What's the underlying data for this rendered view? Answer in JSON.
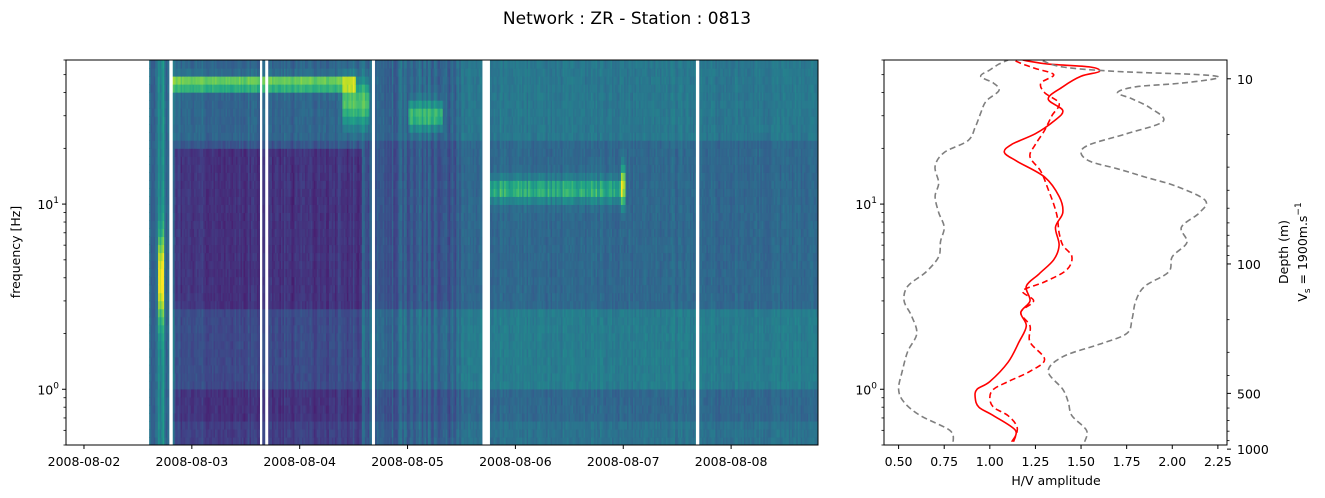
{
  "figure": {
    "title": "Network : ZR - Station : 0813"
  },
  "chart_data": [
    {
      "type": "heatmap",
      "panel": "spectrogram",
      "ylabel": "frequency [Hz]",
      "xlabel": "",
      "yscale": "log",
      "xlim": [
        "2008-08-01 20:00",
        "2008-08-08 19:20"
      ],
      "ylim": [
        0.5,
        60
      ],
      "x_ticks": [
        "2008-08-02",
        "2008-08-03",
        "2008-08-04",
        "2008-08-05",
        "2008-08-06",
        "2008-08-07",
        "2008-08-08"
      ],
      "y_ticks": [
        {
          "label": "10",
          "sup": "0",
          "value": 1
        },
        {
          "label": "10",
          "sup": "1",
          "value": 10
        }
      ],
      "colormap": "viridis",
      "data_start": "2008-08-02 14:30",
      "data_gaps": [
        {
          "start": "2008-08-02 19:00",
          "end": "2008-08-02 19:45"
        },
        {
          "start": "2008-08-03 15:10",
          "end": "2008-08-03 15:40"
        },
        {
          "start": "2008-08-03 16:20",
          "end": "2008-08-03 17:00"
        },
        {
          "start": "2008-08-04 16:05",
          "end": "2008-08-04 16:45"
        },
        {
          "start": "2008-08-05 16:40",
          "end": "2008-08-05 18:20"
        },
        {
          "start": "2008-08-07 16:10",
          "end": "2008-08-07 16:55"
        }
      ],
      "features": [
        {
          "name": "persistent peak near 45 Hz",
          "freq": 45,
          "from": "2008-08-02 19:30",
          "to": "2008-08-04 12:30"
        },
        {
          "name": "peak band 10-14 Hz",
          "freq": 12,
          "from": "2008-08-05 18:00",
          "to": "2008-08-07 00:00"
        },
        {
          "name": "strong broadband at start",
          "freq": 4,
          "from": "2008-08-02 14:30",
          "to": "2008-08-02 19:00"
        }
      ]
    },
    {
      "type": "line",
      "panel": "hv-curve",
      "xlabel": "H/V amplitude",
      "ylabel": "",
      "xlim": [
        0.42,
        2.3
      ],
      "ylim": [
        0.5,
        60
      ],
      "yscale": "log",
      "x_ticks": [
        "0.50",
        "0.75",
        "1.00",
        "1.25",
        "1.50",
        "1.75",
        "2.00",
        "2.25"
      ],
      "y_ticks": [
        {
          "label": "10",
          "sup": "0",
          "value": 1
        },
        {
          "label": "10",
          "sup": "1",
          "value": 10
        }
      ],
      "series": [
        {
          "style": "solid",
          "color": "#ff0000",
          "points": [
            [
              1.12,
              0.52
            ],
            [
              1.14,
              0.6
            ],
            [
              1.02,
              0.72
            ],
            [
              0.94,
              0.8
            ],
            [
              0.92,
              0.9
            ],
            [
              0.93,
              1.0
            ],
            [
              1.0,
              1.1
            ],
            [
              1.1,
              1.4
            ],
            [
              1.16,
              1.8
            ],
            [
              1.2,
              2.2
            ],
            [
              1.17,
              2.6
            ],
            [
              1.22,
              3.0
            ],
            [
              1.2,
              3.6
            ],
            [
              1.27,
              4.2
            ],
            [
              1.35,
              5.0
            ],
            [
              1.38,
              6.0
            ],
            [
              1.36,
              7.5
            ],
            [
              1.4,
              9.0
            ],
            [
              1.38,
              11.0
            ],
            [
              1.3,
              14.0
            ],
            [
              1.15,
              17.0
            ],
            [
              1.08,
              19.0
            ],
            [
              1.12,
              21.0
            ],
            [
              1.25,
              24.0
            ],
            [
              1.35,
              28.0
            ],
            [
              1.4,
              32.0
            ],
            [
              1.32,
              37.0
            ],
            [
              1.4,
              43.0
            ],
            [
              1.5,
              49.0
            ],
            [
              1.6,
              52.0
            ],
            [
              1.55,
              55.0
            ],
            [
              1.32,
              57.0
            ],
            [
              1.22,
              59.0
            ],
            [
              1.18,
              60.0
            ]
          ]
        },
        {
          "style": "dashed",
          "color": "#ff0000",
          "points": [
            [
              1.13,
              0.52
            ],
            [
              1.15,
              0.62
            ],
            [
              1.1,
              0.72
            ],
            [
              1.02,
              0.8
            ],
            [
              1.0,
              0.9
            ],
            [
              1.02,
              1.0
            ],
            [
              1.1,
              1.1
            ],
            [
              1.22,
              1.25
            ],
            [
              1.3,
              1.45
            ],
            [
              1.22,
              1.8
            ],
            [
              1.22,
              2.2
            ],
            [
              1.17,
              2.6
            ],
            [
              1.24,
              3.0
            ],
            [
              1.18,
              3.4
            ],
            [
              1.3,
              3.8
            ],
            [
              1.42,
              4.4
            ],
            [
              1.45,
              5.2
            ],
            [
              1.4,
              6.0
            ],
            [
              1.38,
              7.0
            ],
            [
              1.37,
              8.5
            ],
            [
              1.35,
              10.0
            ],
            [
              1.32,
              12.0
            ],
            [
              1.28,
              15.0
            ],
            [
              1.22,
              18.0
            ],
            [
              1.25,
              21.0
            ],
            [
              1.3,
              25.0
            ],
            [
              1.34,
              30.0
            ],
            [
              1.38,
              35.0
            ],
            [
              1.3,
              40.0
            ],
            [
              1.28,
              45.0
            ],
            [
              1.35,
              50.0
            ],
            [
              1.25,
              54.0
            ],
            [
              1.18,
              57.0
            ],
            [
              1.13,
              60.0
            ]
          ]
        },
        {
          "style": "dashed",
          "color": "#7f7f7f",
          "points": [
            [
              0.8,
              0.52
            ],
            [
              0.78,
              0.6
            ],
            [
              0.62,
              0.72
            ],
            [
              0.53,
              0.85
            ],
            [
              0.5,
              1.0
            ],
            [
              0.52,
              1.25
            ],
            [
              0.55,
              1.6
            ],
            [
              0.6,
              2.0
            ],
            [
              0.57,
              2.5
            ],
            [
              0.53,
              3.0
            ],
            [
              0.55,
              3.6
            ],
            [
              0.65,
              4.3
            ],
            [
              0.72,
              5.2
            ],
            [
              0.73,
              6.3
            ],
            [
              0.75,
              7.5
            ],
            [
              0.72,
              9.0
            ],
            [
              0.7,
              11.0
            ],
            [
              0.72,
              13.0
            ],
            [
              0.7,
              16.0
            ],
            [
              0.75,
              19.0
            ],
            [
              0.88,
              22.0
            ],
            [
              0.92,
              26.0
            ],
            [
              0.95,
              31.0
            ],
            [
              0.98,
              36.0
            ],
            [
              1.05,
              41.0
            ],
            [
              1.02,
              45.0
            ],
            [
              0.95,
              49.0
            ],
            [
              1.0,
              53.0
            ],
            [
              1.05,
              57.0
            ],
            [
              1.1,
              60.0
            ]
          ]
        },
        {
          "style": "dashed",
          "color": "#7f7f7f",
          "points": [
            [
              1.52,
              0.52
            ],
            [
              1.53,
              0.6
            ],
            [
              1.45,
              0.72
            ],
            [
              1.43,
              0.85
            ],
            [
              1.4,
              1.0
            ],
            [
              1.32,
              1.25
            ],
            [
              1.4,
              1.5
            ],
            [
              1.6,
              1.75
            ],
            [
              1.75,
              2.0
            ],
            [
              1.78,
              2.4
            ],
            [
              1.8,
              3.0
            ],
            [
              1.85,
              3.6
            ],
            [
              1.98,
              4.3
            ],
            [
              2.0,
              5.2
            ],
            [
              2.08,
              6.2
            ],
            [
              2.05,
              7.5
            ],
            [
              2.15,
              9.0
            ],
            [
              2.18,
              10.5
            ],
            [
              2.02,
              12.5
            ],
            [
              1.85,
              14.0
            ],
            [
              1.7,
              15.5
            ],
            [
              1.55,
              17.0
            ],
            [
              1.5,
              19.0
            ],
            [
              1.55,
              21.0
            ],
            [
              1.75,
              24.0
            ],
            [
              1.95,
              28.0
            ],
            [
              1.88,
              33.0
            ],
            [
              1.78,
              37.0
            ],
            [
              1.7,
              40.0
            ],
            [
              1.8,
              43.0
            ],
            [
              2.05,
              45.0
            ],
            [
              2.25,
              48.0
            ],
            [
              2.15,
              50.0
            ],
            [
              1.7,
              52.0
            ],
            [
              1.4,
              55.0
            ],
            [
              1.28,
              60.0
            ]
          ]
        }
      ],
      "secondary_axis": {
        "label": "Depth (m)",
        "label2_text": "V",
        "label2_sub": "s",
        "label2_rest": " = 1900m.s",
        "label2_sup": "−1",
        "vs": 1900,
        "ticks": [
          {
            "label": "10",
            "depth": 10
          },
          {
            "label": "100",
            "depth": 100
          },
          {
            "label": "500",
            "depth": 500
          },
          {
            "label": "1000",
            "depth": 1000
          }
        ]
      }
    }
  ]
}
